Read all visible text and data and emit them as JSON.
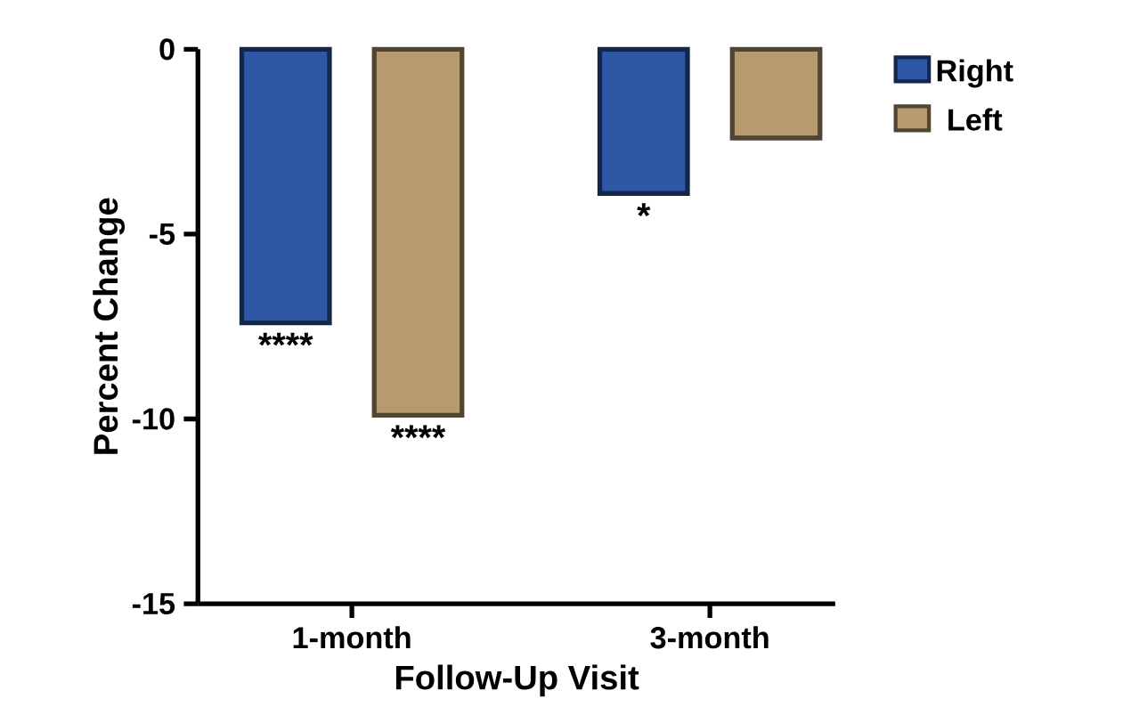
{
  "chart_data": {
    "type": "bar",
    "xlabel": "Follow-Up Visit",
    "ylabel": "Percent Change",
    "categories": [
      "1-month",
      "3-month"
    ],
    "series": [
      {
        "name": "Right",
        "color": "#2e57a5",
        "values": [
          -7.4,
          -3.9
        ]
      },
      {
        "name": "Left",
        "color": "#b59b6e",
        "values": [
          -9.9,
          -2.4
        ]
      }
    ],
    "ylim": [
      -15,
      0
    ],
    "yticks": [
      -15,
      -10,
      -5,
      0
    ],
    "legend": "top right",
    "grid": false,
    "annotations": [
      "****",
      "****",
      "*"
    ]
  }
}
